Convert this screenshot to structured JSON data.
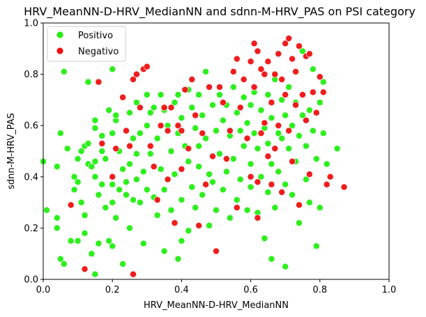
{
  "chart_data": {
    "type": "scatter",
    "title": "HRV_MeanNN-D-HRV_MedianNN and sdnn-M-HRV_PAS on PSI category",
    "xlabel": "HRV_MeanNN-D-HRV_MedianNN",
    "ylabel": "sdnn-M-HRV_PAS",
    "xlim": [
      0,
      1
    ],
    "ylim": [
      0,
      1
    ],
    "xticks": [
      "0.0",
      "0.2",
      "0.4",
      "0.6",
      "0.8",
      "1.0"
    ],
    "yticks": [
      "0.0",
      "0.2",
      "0.4",
      "0.6",
      "0.8",
      "1.0"
    ],
    "grid": false,
    "legend_position": "top-left",
    "series": [
      {
        "name": "Positivo",
        "color": "#22ee11",
        "points": [
          [
            0.0,
            0.46
          ],
          [
            0.01,
            0.27
          ],
          [
            0.04,
            0.44
          ],
          [
            0.04,
            0.24
          ],
          [
            0.04,
            0.2
          ],
          [
            0.05,
            0.57
          ],
          [
            0.06,
            0.81
          ],
          [
            0.05,
            0.08
          ],
          [
            0.06,
            0.06
          ],
          [
            0.07,
            0.51
          ],
          [
            0.08,
            0.15
          ],
          [
            0.09,
            0.4
          ],
          [
            0.09,
            0.35
          ],
          [
            0.1,
            0.15
          ],
          [
            0.1,
            0.47
          ],
          [
            0.1,
            0.38
          ],
          [
            0.11,
            0.5
          ],
          [
            0.11,
            0.3
          ],
          [
            0.12,
            0.52
          ],
          [
            0.12,
            0.25
          ],
          [
            0.12,
            0.18
          ],
          [
            0.13,
            0.53
          ],
          [
            0.13,
            0.77
          ],
          [
            0.13,
            0.45
          ],
          [
            0.14,
            0.44
          ],
          [
            0.14,
            0.1
          ],
          [
            0.15,
            0.62
          ],
          [
            0.15,
            0.59
          ],
          [
            0.15,
            0.4
          ],
          [
            0.15,
            0.46
          ],
          [
            0.15,
            0.02
          ],
          [
            0.16,
            0.33
          ],
          [
            0.16,
            0.14
          ],
          [
            0.17,
            0.56
          ],
          [
            0.17,
            0.37
          ],
          [
            0.17,
            0.5
          ],
          [
            0.18,
            0.47
          ],
          [
            0.18,
            0.28
          ],
          [
            0.19,
            0.15
          ],
          [
            0.19,
            0.66
          ],
          [
            0.2,
            0.82
          ],
          [
            0.2,
            0.57
          ],
          [
            0.2,
            0.37
          ],
          [
            0.2,
            0.3
          ],
          [
            0.2,
            0.13
          ],
          [
            0.21,
            0.62
          ],
          [
            0.21,
            0.64
          ],
          [
            0.21,
            0.24
          ],
          [
            0.22,
            0.35
          ],
          [
            0.22,
            0.5
          ],
          [
            0.23,
            0.43
          ],
          [
            0.23,
            0.06
          ],
          [
            0.24,
            0.38
          ],
          [
            0.24,
            0.33
          ],
          [
            0.25,
            0.45
          ],
          [
            0.25,
            0.65
          ],
          [
            0.25,
            0.2
          ],
          [
            0.26,
            0.55
          ],
          [
            0.26,
            0.31
          ],
          [
            0.27,
            0.69
          ],
          [
            0.27,
            0.49
          ],
          [
            0.27,
            0.39
          ],
          [
            0.28,
            0.57
          ],
          [
            0.28,
            0.3
          ],
          [
            0.29,
            0.42
          ],
          [
            0.29,
            0.14
          ],
          [
            0.3,
            0.72
          ],
          [
            0.3,
            0.6
          ],
          [
            0.3,
            0.35
          ],
          [
            0.31,
            0.65
          ],
          [
            0.31,
            0.49
          ],
          [
            0.32,
            0.67
          ],
          [
            0.32,
            0.32
          ],
          [
            0.33,
            0.55
          ],
          [
            0.33,
            0.25
          ],
          [
            0.34,
            0.72
          ],
          [
            0.34,
            0.43
          ],
          [
            0.35,
            0.66
          ],
          [
            0.35,
            0.35
          ],
          [
            0.35,
            0.11
          ],
          [
            0.36,
            0.6
          ],
          [
            0.37,
            0.5
          ],
          [
            0.37,
            0.27
          ],
          [
            0.38,
            0.69
          ],
          [
            0.38,
            0.41
          ],
          [
            0.39,
            0.72
          ],
          [
            0.39,
            0.57
          ],
          [
            0.39,
            0.08
          ],
          [
            0.4,
            0.63
          ],
          [
            0.4,
            0.31
          ],
          [
            0.4,
            0.15
          ],
          [
            0.41,
            0.52
          ],
          [
            0.42,
            0.74
          ],
          [
            0.42,
            0.46
          ],
          [
            0.42,
            0.19
          ],
          [
            0.43,
            0.67
          ],
          [
            0.43,
            0.36
          ],
          [
            0.44,
            0.59
          ],
          [
            0.44,
            0.28
          ],
          [
            0.45,
            0.72
          ],
          [
            0.45,
            0.52
          ],
          [
            0.45,
            0.44
          ],
          [
            0.46,
            0.64
          ],
          [
            0.46,
            0.33
          ],
          [
            0.47,
            0.81
          ],
          [
            0.47,
            0.55
          ],
          [
            0.48,
            0.41
          ],
          [
            0.48,
            0.21
          ],
          [
            0.49,
            0.68
          ],
          [
            0.49,
            0.38
          ],
          [
            0.5,
            0.58
          ],
          [
            0.5,
            0.27
          ],
          [
            0.51,
            0.72
          ],
          [
            0.51,
            0.49
          ],
          [
            0.52,
            0.62
          ],
          [
            0.52,
            0.35
          ],
          [
            0.53,
            0.68
          ],
          [
            0.53,
            0.42
          ],
          [
            0.54,
            0.56
          ],
          [
            0.54,
            0.24
          ],
          [
            0.55,
            0.75
          ],
          [
            0.55,
            0.47
          ],
          [
            0.56,
            0.65
          ],
          [
            0.56,
            0.31
          ],
          [
            0.57,
            0.58
          ],
          [
            0.57,
            0.39
          ],
          [
            0.58,
            0.71
          ],
          [
            0.58,
            0.52
          ],
          [
            0.59,
            0.61
          ],
          [
            0.59,
            0.27
          ],
          [
            0.6,
            0.68
          ],
          [
            0.6,
            0.45
          ],
          [
            0.6,
            0.36
          ],
          [
            0.61,
            0.57
          ],
          [
            0.61,
            0.73
          ],
          [
            0.62,
            0.51
          ],
          [
            0.62,
            0.26
          ],
          [
            0.63,
            0.66
          ],
          [
            0.63,
            0.4
          ],
          [
            0.64,
            0.59
          ],
          [
            0.64,
            0.16
          ],
          [
            0.65,
            0.72
          ],
          [
            0.65,
            0.53
          ],
          [
            0.65,
            0.34
          ],
          [
            0.66,
            0.63
          ],
          [
            0.66,
            0.45
          ],
          [
            0.67,
            0.78
          ],
          [
            0.67,
            0.28
          ],
          [
            0.68,
            0.57
          ],
          [
            0.68,
            0.42
          ],
          [
            0.69,
            0.7
          ],
          [
            0.69,
            0.55
          ],
          [
            0.7,
            0.64
          ],
          [
            0.7,
            0.37
          ],
          [
            0.7,
            0.05
          ],
          [
            0.71,
            0.51
          ],
          [
            0.71,
            0.75
          ],
          [
            0.72,
            0.6
          ],
          [
            0.72,
            0.33
          ],
          [
            0.73,
            0.69
          ],
          [
            0.73,
            0.46
          ],
          [
            0.74,
            0.56
          ],
          [
            0.74,
            0.22
          ],
          [
            0.75,
            0.64
          ],
          [
            0.75,
            0.89
          ],
          [
            0.76,
            0.52
          ],
          [
            0.76,
            0.39
          ],
          [
            0.77,
            0.66
          ],
          [
            0.77,
            0.3
          ],
          [
            0.78,
            0.58
          ],
          [
            0.78,
            0.82
          ],
          [
            0.79,
            0.47
          ],
          [
            0.79,
            0.13
          ],
          [
            0.8,
            0.69
          ],
          [
            0.8,
            0.28
          ],
          [
            0.81,
            0.57
          ],
          [
            0.81,
            0.77
          ],
          [
            0.82,
            0.45
          ],
          [
            0.85,
            0.51
          ],
          [
            0.66,
            0.08
          ]
        ]
      },
      {
        "name": "Negativo",
        "color": "#ee1111",
        "points": [
          [
            0.08,
            0.29
          ],
          [
            0.12,
            0.04
          ],
          [
            0.16,
            0.77
          ],
          [
            0.17,
            0.53
          ],
          [
            0.2,
            0.4
          ],
          [
            0.21,
            0.51
          ],
          [
            0.23,
            0.71
          ],
          [
            0.24,
            0.58
          ],
          [
            0.25,
            0.52
          ],
          [
            0.26,
            0.78
          ],
          [
            0.26,
            0.02
          ],
          [
            0.27,
            0.8
          ],
          [
            0.28,
            0.67
          ],
          [
            0.29,
            0.82
          ],
          [
            0.3,
            0.83
          ],
          [
            0.31,
            0.52
          ],
          [
            0.32,
            0.44
          ],
          [
            0.33,
            0.31
          ],
          [
            0.34,
            0.6
          ],
          [
            0.35,
            0.67
          ],
          [
            0.36,
            0.58
          ],
          [
            0.36,
            0.39
          ],
          [
            0.37,
            0.67
          ],
          [
            0.38,
            0.22
          ],
          [
            0.39,
            0.6
          ],
          [
            0.4,
            0.58
          ],
          [
            0.4,
            0.43
          ],
          [
            0.41,
            0.74
          ],
          [
            0.42,
            0.51
          ],
          [
            0.43,
            0.78
          ],
          [
            0.44,
            0.64
          ],
          [
            0.45,
            0.21
          ],
          [
            0.46,
            0.57
          ],
          [
            0.47,
            0.37
          ],
          [
            0.48,
            0.75
          ],
          [
            0.49,
            0.48
          ],
          [
            0.5,
            0.11
          ],
          [
            0.51,
            0.75
          ],
          [
            0.52,
            0.69
          ],
          [
            0.53,
            0.47
          ],
          [
            0.54,
            0.58
          ],
          [
            0.55,
            0.81
          ],
          [
            0.56,
            0.86
          ],
          [
            0.56,
            0.28
          ],
          [
            0.57,
            0.67
          ],
          [
            0.58,
            0.78
          ],
          [
            0.59,
            0.55
          ],
          [
            0.6,
            0.85
          ],
          [
            0.6,
            0.4
          ],
          [
            0.61,
            0.92
          ],
          [
            0.61,
            0.75
          ],
          [
            0.62,
            0.89
          ],
          [
            0.62,
            0.24
          ],
          [
            0.63,
            0.82
          ],
          [
            0.63,
            0.57
          ],
          [
            0.64,
            0.8
          ],
          [
            0.64,
            0.61
          ],
          [
            0.65,
            0.85
          ],
          [
            0.65,
            0.48
          ],
          [
            0.66,
            0.69
          ],
          [
            0.66,
            0.37
          ],
          [
            0.67,
            0.8
          ],
          [
            0.67,
            0.51
          ],
          [
            0.68,
            0.88
          ],
          [
            0.68,
            0.6
          ],
          [
            0.69,
            0.78
          ],
          [
            0.69,
            0.34
          ],
          [
            0.7,
            0.92
          ],
          [
            0.7,
            0.72
          ],
          [
            0.71,
            0.94
          ],
          [
            0.71,
            0.58
          ],
          [
            0.72,
            0.86
          ],
          [
            0.72,
            0.46
          ],
          [
            0.73,
            0.81
          ],
          [
            0.73,
            0.68
          ],
          [
            0.74,
            0.91
          ],
          [
            0.74,
            0.29
          ],
          [
            0.75,
            0.72
          ],
          [
            0.76,
            0.87
          ],
          [
            0.76,
            0.62
          ],
          [
            0.77,
            0.88
          ],
          [
            0.77,
            0.41
          ],
          [
            0.78,
            0.73
          ],
          [
            0.79,
            0.65
          ],
          [
            0.8,
            0.79
          ],
          [
            0.81,
            0.73
          ],
          [
            0.82,
            0.37
          ],
          [
            0.83,
            0.4
          ],
          [
            0.87,
            0.36
          ],
          [
            0.62,
            0.38
          ]
        ]
      }
    ]
  }
}
